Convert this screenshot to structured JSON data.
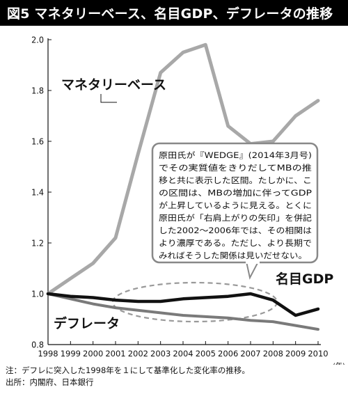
{
  "title": "図5 マネタリーベース、名目GDP、デフレータの推移",
  "chart_data": {
    "type": "line",
    "title": "図5 マネタリーベース、名目GDP、デフレータの推移",
    "x": [
      1998,
      1999,
      2000,
      2001,
      2002,
      2003,
      2004,
      2005,
      2006,
      2007,
      2008,
      2009,
      2010
    ],
    "x_tick_labels": [
      "1998",
      "1999",
      "2000",
      "2001",
      "2002",
      "2003",
      "2004",
      "2005",
      "2006",
      "2007",
      "2008",
      "2009",
      "2010"
    ],
    "x_unit": "(年)",
    "ylim": [
      0.8,
      2.0
    ],
    "y_ticks": [
      0.8,
      1.0,
      1.2,
      1.4,
      1.6,
      1.8,
      2.0
    ],
    "y_tick_labels": [
      "0.8",
      "1.0",
      "1.2",
      "1.4",
      "1.6",
      "1.8",
      "2.0"
    ],
    "grid": false,
    "series": [
      {
        "name": "マネタリーベース",
        "color": "#a8a8a8",
        "values": [
          1.0,
          1.06,
          1.12,
          1.22,
          1.55,
          1.87,
          1.95,
          1.98,
          1.66,
          1.59,
          1.6,
          1.7,
          1.76
        ]
      },
      {
        "name": "名目GDP",
        "color": "#111111",
        "values": [
          1.0,
          0.99,
          0.985,
          0.975,
          0.97,
          0.97,
          0.98,
          0.985,
          0.99,
          1.0,
          0.975,
          0.915,
          0.94
        ]
      },
      {
        "name": "デフレータ",
        "color": "#7a7a7a",
        "values": [
          1.0,
          0.98,
          0.96,
          0.945,
          0.935,
          0.925,
          0.915,
          0.91,
          0.905,
          0.895,
          0.89,
          0.875,
          0.86
        ]
      }
    ],
    "callout_lines": [
      "原田氏が『WEDGE』(2014年3月号)",
      "でその実質値をきりだしてMBの推",
      "移と共に表示した区間。たしかに、こ",
      "の区間は、MBの増加に伴ってGDP",
      "が上昇しているように見える。とくに",
      "原田氏が「右肩上がりの矢印」を併記",
      "した2002〜2006年では、その相関は",
      "より濃厚である。ただし、より長期で",
      "みればそうした関係は見いだせない。"
    ]
  },
  "footnotes": [
    "注：デフレに突入した1998年を１にして基準化した変化率の推移。",
    "出所：内閣府、日本銀行"
  ]
}
